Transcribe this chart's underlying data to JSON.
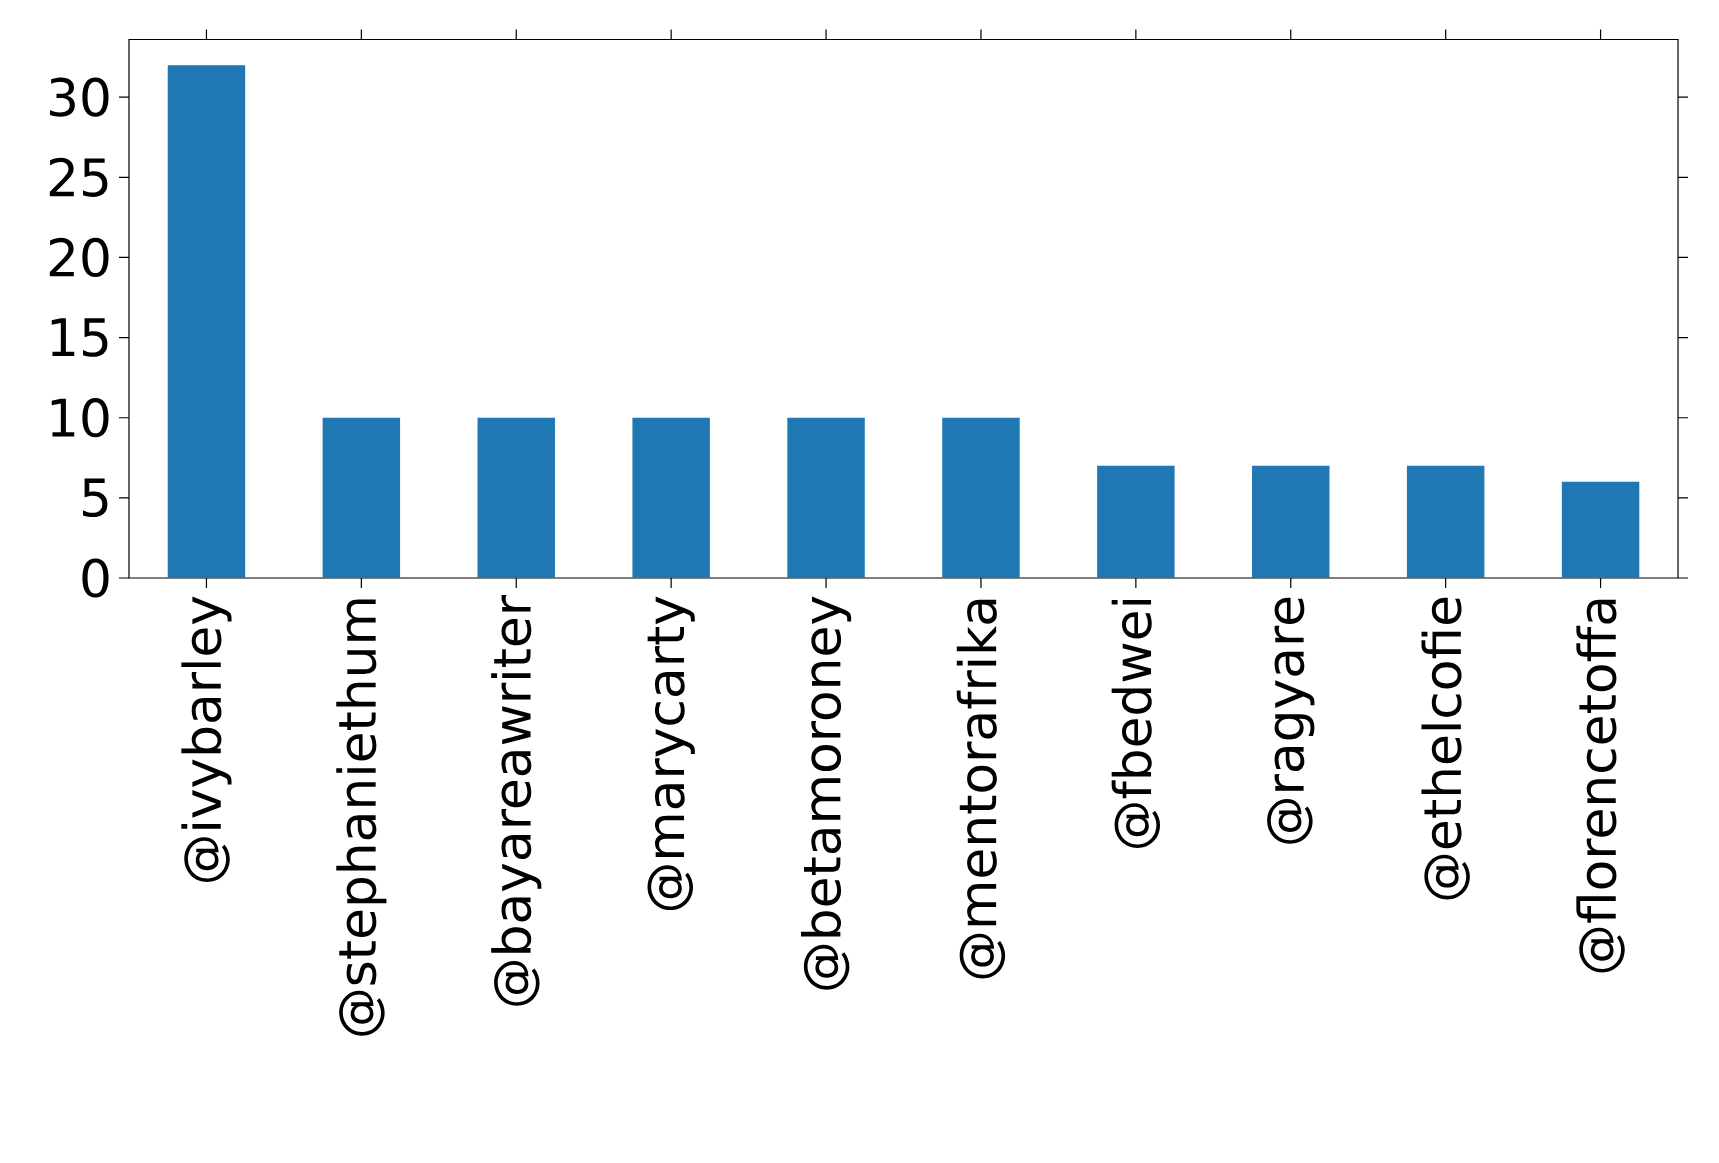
{
  "chart_data": {
    "type": "bar",
    "categories": [
      "@ivybarley",
      "@stephaniethum",
      "@bayareawriter",
      "@marycarty",
      "@betamoroney",
      "@mentorafrika",
      "@fbedwei",
      "@ragyare",
      "@ethelcofie",
      "@florencetoffa"
    ],
    "values": [
      32,
      10,
      10,
      10,
      10,
      10,
      7,
      7,
      7,
      6
    ],
    "color": "#1f77b4",
    "ylim": [
      0,
      33.6
    ],
    "yticks": [
      0,
      5,
      10,
      15,
      20,
      25,
      30
    ]
  }
}
